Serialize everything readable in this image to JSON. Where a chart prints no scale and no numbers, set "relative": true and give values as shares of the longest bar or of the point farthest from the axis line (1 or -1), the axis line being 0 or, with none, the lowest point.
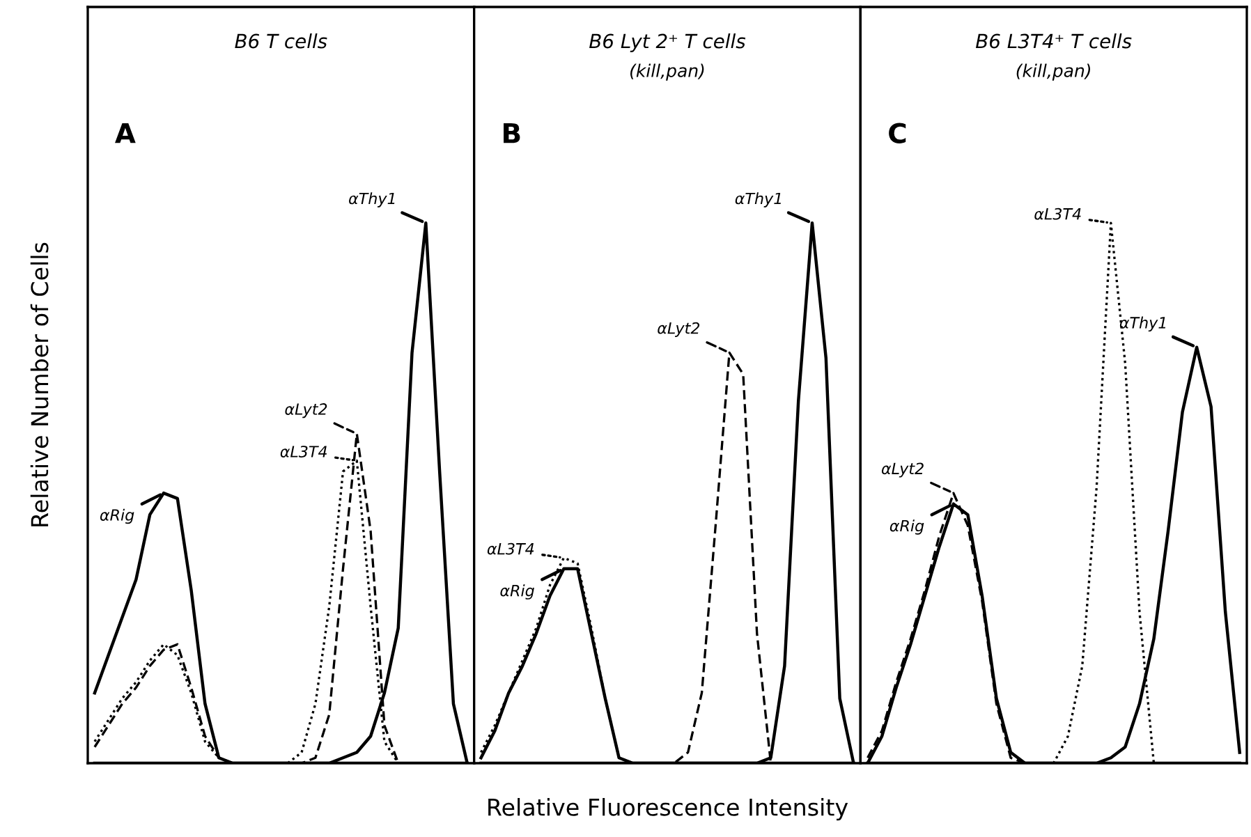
{
  "chart_data": [
    {
      "type": "line",
      "relative": true,
      "tick_labels": false,
      "title": "B6 T cells",
      "ylabel": "Relative Number of Cells",
      "annotations": [
        "A"
      ],
      "categories": [
        null,
        null,
        null,
        null,
        null,
        null,
        null,
        null,
        null,
        null,
        null,
        null,
        null,
        null,
        null,
        null,
        null,
        null,
        null,
        null,
        null,
        null,
        null,
        null,
        null,
        null,
        null,
        null
      ],
      "series": [
        {
          "name": "αRig",
          "color": "#000000",
          "line_style": "solid",
          "values": [
            0.13,
            0.2,
            0.27,
            0.34,
            0.46,
            0.5,
            0.49,
            0.32,
            0.11,
            0.01,
            0,
            0,
            0,
            0,
            0,
            0,
            0,
            0,
            0,
            0,
            0,
            0,
            0,
            0,
            0,
            0,
            0,
            0
          ]
        },
        {
          "name": "αLyt2",
          "color": "#000000",
          "line_style": "dashed",
          "values": [
            0.03,
            0.07,
            0.11,
            0.14,
            0.18,
            0.21,
            0.22,
            0.14,
            0.05,
            0.01,
            0,
            0,
            0,
            0,
            0,
            0,
            0.01,
            0.09,
            0.36,
            0.61,
            0.43,
            0.07,
            0,
            0,
            0,
            0,
            0,
            0
          ]
        },
        {
          "name": "αL3T4",
          "color": "#000000",
          "line_style": "dotted",
          "values": [
            0.04,
            0.08,
            0.12,
            0.15,
            0.19,
            0.22,
            0.2,
            0.13,
            0.04,
            0.01,
            0,
            0,
            0,
            0,
            0,
            0.02,
            0.11,
            0.29,
            0.54,
            0.56,
            0.29,
            0.04,
            0,
            0,
            0,
            0,
            0,
            0
          ]
        },
        {
          "name": "αThy1",
          "color": "#000000",
          "line_style": "solid",
          "values": [
            0,
            0,
            0,
            0,
            0,
            0,
            0,
            0,
            0,
            0,
            0,
            0,
            0,
            0,
            0,
            0,
            0,
            0,
            0.01,
            0.02,
            0.05,
            0.13,
            0.25,
            0.76,
            1,
            0.54,
            0.11,
            0
          ]
        }
      ]
    },
    {
      "type": "line",
      "relative": true,
      "tick_labels": false,
      "title": "B6 Lyt 2⁺ T cells",
      "subtitle": "(kill,pan)",
      "xlabel": "Relative Fluorescence Intensity",
      "annotations": [
        "B"
      ],
      "categories": [
        null,
        null,
        null,
        null,
        null,
        null,
        null,
        null,
        null,
        null,
        null,
        null,
        null,
        null,
        null,
        null,
        null,
        null,
        null,
        null,
        null,
        null,
        null,
        null,
        null,
        null,
        null,
        null
      ],
      "series": [
        {
          "name": "αRig",
          "color": "#000000",
          "line_style": "solid",
          "values": [
            0.01,
            0.06,
            0.13,
            0.18,
            0.24,
            0.31,
            0.36,
            0.36,
            0.24,
            0.12,
            0.01,
            0,
            0,
            0,
            0,
            0,
            0,
            0,
            0,
            0,
            0,
            0,
            0,
            0,
            0,
            0,
            0,
            0
          ]
        },
        {
          "name": "αLyt2",
          "color": "#000000",
          "line_style": "dashed",
          "values": [
            0,
            0,
            0,
            0,
            0,
            0,
            0,
            0,
            0,
            0,
            0,
            0,
            0,
            0,
            0,
            0.02,
            0.13,
            0.44,
            0.76,
            0.72,
            0.24,
            0,
            0,
            0,
            0,
            0,
            0,
            0
          ]
        },
        {
          "name": "αL3T4",
          "color": "#000000",
          "line_style": "dotted",
          "values": [
            0.02,
            0.07,
            0.13,
            0.19,
            0.25,
            0.33,
            0.38,
            0.37,
            0.25,
            0.12,
            0.01,
            0,
            0,
            0,
            0,
            0,
            0,
            0,
            0,
            0,
            0,
            0,
            0,
            0,
            0,
            0,
            0,
            0
          ]
        },
        {
          "name": "αThy1",
          "color": "#000000",
          "line_style": "solid",
          "values": [
            0,
            0,
            0,
            0,
            0,
            0,
            0,
            0,
            0,
            0,
            0,
            0,
            0,
            0,
            0,
            0,
            0,
            0,
            0,
            0,
            0,
            0.01,
            0.18,
            0.67,
            1,
            0.75,
            0.12,
            0
          ]
        }
      ]
    },
    {
      "type": "line",
      "relative": true,
      "tick_labels": false,
      "title": "B6 L3T4⁺ T cells",
      "subtitle": "(kill,pan)",
      "annotations": [
        "C"
      ],
      "categories": [
        null,
        null,
        null,
        null,
        null,
        null,
        null,
        null,
        null,
        null,
        null,
        null,
        null,
        null,
        null,
        null,
        null,
        null,
        null,
        null,
        null,
        null,
        null,
        null,
        null,
        null,
        null
      ],
      "series": [
        {
          "name": "αRig",
          "color": "#000000",
          "line_style": "solid",
          "values": [
            0,
            0.05,
            0.14,
            0.22,
            0.31,
            0.4,
            0.48,
            0.46,
            0.31,
            0.12,
            0.02,
            0,
            0,
            0,
            0,
            0,
            0,
            0,
            0,
            0,
            0,
            0,
            0,
            0,
            0,
            0,
            0
          ]
        },
        {
          "name": "αLyt2",
          "color": "#000000",
          "line_style": "dashed",
          "values": [
            0.01,
            0.06,
            0.15,
            0.23,
            0.32,
            0.42,
            0.5,
            0.44,
            0.3,
            0.11,
            0.01,
            0,
            0,
            0,
            0,
            0,
            0,
            0,
            0,
            0,
            0,
            0,
            0,
            0,
            0,
            0,
            0
          ]
        },
        {
          "name": "αL3T4",
          "color": "#000000",
          "line_style": "dotted",
          "values": [
            0,
            0,
            0,
            0,
            0,
            0,
            0,
            0,
            0,
            0,
            0,
            0,
            0,
            0,
            0.05,
            0.18,
            0.51,
            1,
            0.74,
            0.28,
            0,
            0,
            0,
            0,
            0,
            0,
            0
          ]
        },
        {
          "name": "αThy1",
          "color": "#000000",
          "line_style": "solid",
          "values": [
            0,
            0,
            0,
            0,
            0,
            0,
            0,
            0,
            0,
            0,
            0,
            0,
            0,
            0,
            0,
            0,
            0,
            0.01,
            0.03,
            0.11,
            0.23,
            0.43,
            0.65,
            0.77,
            0.66,
            0.28,
            0.02
          ]
        }
      ]
    }
  ]
}
